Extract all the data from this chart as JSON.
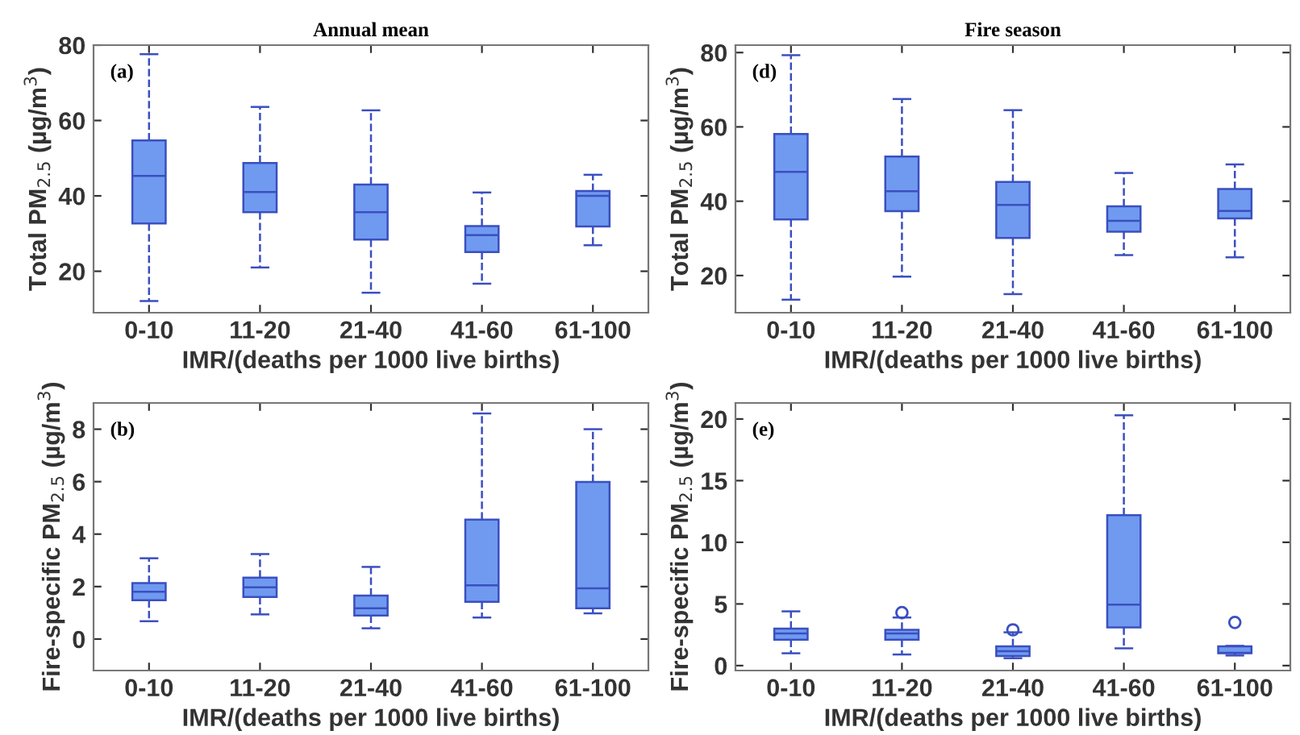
{
  "chart_data": [
    {
      "type": "box",
      "title": "Annual mean",
      "xlabel": "IMR/(deaths per 1000 live births)",
      "ylabel": "Total PM$_{2.5}$ (µg/m$^{3}$)",
      "annotations": [
        "(a)"
      ],
      "categories": [
        "0-10",
        "11-20",
        "21-40",
        "41-60",
        "61-100"
      ],
      "ylim": [
        9,
        80
      ],
      "yticks": [
        20,
        40,
        60,
        80
      ],
      "color": "#6f9af0",
      "boxes": [
        {
          "low": 12.1,
          "q1": 32.7,
          "median": 45.3,
          "q3": 54.7,
          "high": 77.6
        },
        {
          "low": 21,
          "q1": 35.7,
          "median": 41,
          "q3": 48.7,
          "high": 63.6
        },
        {
          "low": 14.3,
          "q1": 28.4,
          "median": 35.7,
          "q3": 43,
          "high": 62.7
        },
        {
          "low": 16.7,
          "q1": 25.1,
          "median": 29.6,
          "q3": 32,
          "high": 40.9
        },
        {
          "low": 26.9,
          "q1": 31.9,
          "median": 40,
          "q3": 41.3,
          "high": 45.6
        }
      ]
    },
    {
      "type": "box",
      "title": "Fire season",
      "xlabel": "IMR/(deaths per 1000 live births)",
      "ylabel": "Total PM$_{2.5}$ (µg/m$^{3}$)",
      "annotations": [
        "(d)"
      ],
      "categories": [
        "0-10",
        "11-20",
        "21-40",
        "41-60",
        "61-100"
      ],
      "ylim": [
        10,
        82
      ],
      "yticks": [
        20,
        40,
        60,
        80
      ],
      "color": "#6f9af0",
      "boxes": [
        {
          "low": 13.5,
          "q1": 35.1,
          "median": 47.9,
          "q3": 58.1,
          "high": 79.3
        },
        {
          "low": 19.7,
          "q1": 37.3,
          "median": 42.7,
          "q3": 52,
          "high": 67.5
        },
        {
          "low": 15,
          "q1": 30.1,
          "median": 39,
          "q3": 45.2,
          "high": 64.5
        },
        {
          "low": 25.5,
          "q1": 31.8,
          "median": 34.7,
          "q3": 38.6,
          "high": 47.6
        },
        {
          "low": 24.9,
          "q1": 35.4,
          "median": 37.4,
          "q3": 43.3,
          "high": 49.9
        }
      ]
    },
    {
      "type": "box",
      "xlabel": "IMR/(deaths per 1000 live births)",
      "ylabel": "Fire-specific PM$_{2.5}$ (µg/m$^{3}$)",
      "annotations": [
        "(b)"
      ],
      "categories": [
        "0-10",
        "11-20",
        "21-40",
        "41-60",
        "61-100"
      ],
      "ylim": [
        -1.2,
        9
      ],
      "yticks": [
        0,
        2,
        4,
        6,
        8
      ],
      "color": "#6f9af0",
      "boxes": [
        {
          "low": 0.68,
          "q1": 1.48,
          "median": 1.8,
          "q3": 2.13,
          "high": 3.08
        },
        {
          "low": 0.94,
          "q1": 1.6,
          "median": 1.97,
          "q3": 2.34,
          "high": 3.24
        },
        {
          "low": 0.41,
          "q1": 0.9,
          "median": 1.17,
          "q3": 1.66,
          "high": 2.75
        },
        {
          "low": 0.82,
          "q1": 1.42,
          "median": 2.05,
          "q3": 4.55,
          "high": 8.6
        },
        {
          "low": 0.98,
          "q1": 1.17,
          "median": 1.93,
          "q3": 5.99,
          "high": 8.0
        }
      ]
    },
    {
      "type": "box",
      "xlabel": "IMR/(deaths per 1000 live births)",
      "ylabel": "Fire-specific PM$_{2.5}$ (µg/m$^{3}$)",
      "annotations": [
        "(e)"
      ],
      "categories": [
        "0-10",
        "11-20",
        "21-40",
        "41-60",
        "61-100"
      ],
      "ylim": [
        -0.4,
        21.3
      ],
      "yticks": [
        0,
        5,
        10,
        15,
        20
      ],
      "color": "#6f9af0",
      "boxes": [
        {
          "low": 1.0,
          "q1": 2.1,
          "median": 2.6,
          "q3": 3.0,
          "high": 4.4
        },
        {
          "low": 0.9,
          "q1": 2.1,
          "median": 2.6,
          "q3": 2.9,
          "high": 3.9,
          "outliers": [
            4.3
          ]
        },
        {
          "low": 0.6,
          "q1": 0.78,
          "median": 1.17,
          "q3": 1.56,
          "high": 2.7,
          "outliers": [
            2.9
          ]
        },
        {
          "low": 1.4,
          "q1": 3.1,
          "median": 4.95,
          "q3": 12.2,
          "high": 20.3
        },
        {
          "low": 0.82,
          "q1": 1.0,
          "median": 1.04,
          "q3": 1.56,
          "high": 1.6,
          "outliers": [
            3.5
          ]
        }
      ]
    }
  ]
}
